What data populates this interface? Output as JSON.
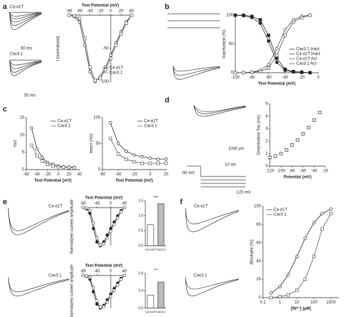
{
  "panel_labels": [
    "a",
    "b",
    "c",
    "d",
    "e",
    "f"
  ],
  "trace_labels": [
    "Ca-α1T",
    "Cav3.1",
    "Ca-α1T",
    "Cav3.1",
    "Ca-α1T",
    "Cav3.1",
    "50 ms",
    "50 ms",
    "1000 pA",
    "10 ms",
    "-120 mV",
    "-90 mV"
  ],
  "chart_data": [
    {
      "type": "line",
      "xlabel": "Test Potential (mV)",
      "ylabel": "I (normalized)",
      "cross": true,
      "legend": "lower-right",
      "xlim": [
        -80,
        40
      ],
      "xticks": [
        -80,
        -60,
        -40,
        -20,
        0,
        20,
        40
      ],
      "ylim": [
        -100,
        0
      ],
      "yticks": [
        -50,
        -100
      ],
      "x": [
        -80,
        -70,
        -60,
        -50,
        -40,
        -30,
        -20,
        -10,
        0,
        10,
        20,
        30,
        40
      ],
      "series": [
        {
          "name": "Ca-α1T",
          "color": "#222222",
          "marker": "circle",
          "values": [
            0,
            -2,
            -10,
            -45,
            -85,
            -100,
            -92,
            -78,
            -60,
            -42,
            -25,
            -10,
            0
          ]
        },
        {
          "name": "Cav3.1",
          "color": "#555555",
          "marker": "square",
          "values": [
            0,
            -1,
            -5,
            -35,
            -78,
            -98,
            -95,
            -82,
            -65,
            -45,
            -28,
            -12,
            0
          ]
        }
      ]
    },
    {
      "type": "line",
      "xlabel": "Test Potential (mV)",
      "ylabel": "Inactivation (%)",
      "legend": "lower-right",
      "xlim": [
        -100,
        0
      ],
      "xticks": [
        -100,
        -80,
        -60,
        -40,
        -20,
        0
      ],
      "ylim": [
        0,
        100
      ],
      "yticks": [
        0,
        50,
        100
      ],
      "x": [
        -100,
        -90,
        -80,
        -70,
        -60,
        -50,
        -40,
        -30,
        -20,
        -10
      ],
      "series": [
        {
          "name": "Cav3.1 Inact",
          "color": "#222222",
          "marker": "filled-square",
          "values": [
            100,
            100,
            98,
            92,
            65,
            25,
            6,
            2,
            1,
            0
          ]
        },
        {
          "name": "Ca-α1T Inact",
          "color": "#222222",
          "marker": "filled-circle",
          "values": [
            100,
            99,
            96,
            86,
            55,
            18,
            4,
            1,
            0,
            0
          ]
        },
        {
          "name": "Ca-α1T Act",
          "color": "#444444",
          "marker": "circle",
          "values": [
            0,
            0,
            1,
            4,
            14,
            42,
            75,
            92,
            98,
            100
          ]
        },
        {
          "name": "Cav3.1 Act",
          "color": "#444444",
          "marker": "square",
          "values": [
            0,
            0,
            1,
            2,
            8,
            30,
            65,
            88,
            96,
            100
          ]
        }
      ]
    },
    {
      "type": "line",
      "xlabel": "Test Potential (mV)",
      "ylabel": "τact",
      "legend": "upper-right",
      "xlim": [
        -60,
        40
      ],
      "xticks": [
        -60,
        -40,
        -20,
        0,
        20,
        40
      ],
      "ylim": [
        0,
        15
      ],
      "yticks": [
        0,
        5,
        10,
        15
      ],
      "x": [
        -50,
        -40,
        -30,
        -20,
        -10,
        0,
        10,
        20,
        30
      ],
      "series": [
        {
          "name": "Ca-α1T",
          "color": "#222222",
          "marker": "circle",
          "values": [
            12,
            6,
            3.5,
            2,
            1.5,
            1,
            0.8,
            0.7,
            0.6
          ]
        },
        {
          "name": "Cav3.1",
          "color": "#555555",
          "marker": "square",
          "values": [
            7,
            4,
            2.5,
            1.5,
            1,
            0.8,
            0.7,
            0.6,
            0.5
          ]
        }
      ]
    },
    {
      "type": "line",
      "xlabel": "Test Potential (mV)",
      "ylabel": "τinact (ms)",
      "legend": "upper-right",
      "xlim": [
        -60,
        20
      ],
      "xticks": [
        -60,
        -40,
        -20,
        0,
        20
      ],
      "ylim": [
        0,
        100
      ],
      "yticks": [
        0,
        50,
        100
      ],
      "x": [
        -50,
        -40,
        -30,
        -20,
        -10,
        0,
        10,
        20
      ],
      "series": [
        {
          "name": "Ca-α1T",
          "color": "#222222",
          "marker": "circle",
          "values": [
            90,
            50,
            35,
            28,
            25,
            22,
            20,
            20
          ]
        },
        {
          "name": "Cav3.1",
          "color": "#555555",
          "marker": "square",
          "values": [
            60,
            30,
            20,
            15,
            12,
            12,
            12,
            12
          ]
        }
      ]
    },
    {
      "type": "line",
      "xlabel": "Potential (mV)",
      "ylabel": "Deactivation Tau (ms)",
      "noline": true,
      "xlim": [
        -120,
        -20
      ],
      "xticks": [
        -120,
        -100,
        -80,
        -60,
        -40,
        -20
      ],
      "ylim": [
        0,
        5
      ],
      "yticks": [
        0,
        1,
        2,
        3,
        4,
        5
      ],
      "x": [
        -120,
        -110,
        -100,
        -90,
        -80,
        -70,
        -60,
        -50,
        -40,
        -30
      ],
      "series": [
        {
          "color": "#222222",
          "marker": "square",
          "values": [
            0.7,
            0.8,
            1,
            1.3,
            1.7,
            2.1,
            2.6,
            3.1,
            3.7,
            4.3
          ]
        }
      ]
    },
    {
      "type": "line",
      "xlabel": "Test Potential (mV)",
      "ylabel": "Normalized current amplitude",
      "cross": true,
      "xlim": [
        -80,
        40
      ],
      "xticks": [
        -80,
        -40,
        0,
        40
      ],
      "ylim": [
        -100,
        0
      ],
      "yticks": [],
      "x": [
        -80,
        -70,
        -60,
        -50,
        -40,
        -30,
        -20,
        -10,
        0,
        10,
        20,
        30,
        40
      ],
      "series": [
        {
          "color": "#222222",
          "marker": "filled-circle",
          "values": [
            0,
            -3,
            -15,
            -55,
            -90,
            -100,
            -90,
            -72,
            -55,
            -38,
            -22,
            -8,
            0
          ]
        },
        {
          "color": "#555555",
          "marker": "circle",
          "values": [
            0,
            -1,
            -8,
            -40,
            -80,
            -98,
            -95,
            -80,
            -62,
            -44,
            -27,
            -11,
            0
          ]
        }
      ]
    },
    {
      "type": "line",
      "xlabel": "Test Potential (mV)",
      "ylabel": "Normalized current amplitude",
      "cross": true,
      "xlim": [
        -80,
        40
      ],
      "xticks": [
        -80,
        -40,
        0,
        40
      ],
      "ylim": [
        -100,
        0
      ],
      "yticks": [],
      "x": [
        -80,
        -70,
        -60,
        -50,
        -40,
        -30,
        -20,
        -10,
        0,
        10,
        20,
        30,
        40
      ],
      "series": [
        {
          "color": "#222222",
          "marker": "filled-circle",
          "values": [
            0,
            -2,
            -12,
            -50,
            -88,
            -100,
            -92,
            -75,
            -58,
            -40,
            -24,
            -9,
            0
          ]
        },
        {
          "color": "#555555",
          "marker": "circle",
          "values": [
            0,
            -1,
            -6,
            -38,
            -78,
            -97,
            -96,
            -82,
            -64,
            -46,
            -29,
            -12,
            0
          ]
        }
      ]
    },
    {
      "type": "bar",
      "annotation": "***",
      "categories": [
        "Ca-α1T",
        "Cav3.1"
      ],
      "values": [
        0.7,
        1.4
      ],
      "colors": [
        "#ffffff",
        "#bbbbbb"
      ],
      "ylim": [
        0,
        1.5
      ],
      "yticks": [
        {
          "value": 0,
          "label": "0.0"
        },
        {
          "value": 0.5,
          "label": "0.5"
        },
        {
          "value": 1,
          "label": "1.0"
        },
        {
          "value": 1.5,
          "label": "1.5"
        }
      ]
    },
    {
      "type": "bar",
      "annotation": "**",
      "categories": [
        "Ca-α1T",
        "Cav3.1"
      ],
      "values": [
        0.3,
        0.6
      ],
      "colors": [
        "#ffffff",
        "#bbbbbb"
      ],
      "ylim": [
        0,
        0.8
      ],
      "yticks": [
        {
          "value": 0,
          "label": "0.0"
        },
        {
          "value": 0.4,
          "label": "0.4"
        },
        {
          "value": 0.8,
          "label": "0.8"
        }
      ]
    },
    {
      "type": "line",
      "xlabel": "[Ni²⁺] (µM)",
      "ylabel": "Blockade (%)",
      "xlog": true,
      "legend": "upper-left",
      "xlim": [
        0.1,
        3000
      ],
      "xticks": [
        0.1,
        1,
        10,
        100,
        1000
      ],
      "ylim": [
        0,
        100
      ],
      "yticks": [
        0,
        20,
        40,
        60,
        80,
        100
      ],
      "x": [
        0.3,
        1,
        3,
        10,
        30,
        100,
        300,
        1000
      ],
      "series": [
        {
          "name": "Ca-α1T",
          "color": "#222222",
          "marker": "circle",
          "values": [
            5,
            12,
            25,
            45,
            65,
            82,
            92,
            97
          ]
        },
        {
          "name": "Cav3.1",
          "color": "#555555",
          "marker": "square",
          "values": [
            0,
            1,
            3,
            8,
            20,
            45,
            75,
            92
          ]
        }
      ]
    }
  ]
}
